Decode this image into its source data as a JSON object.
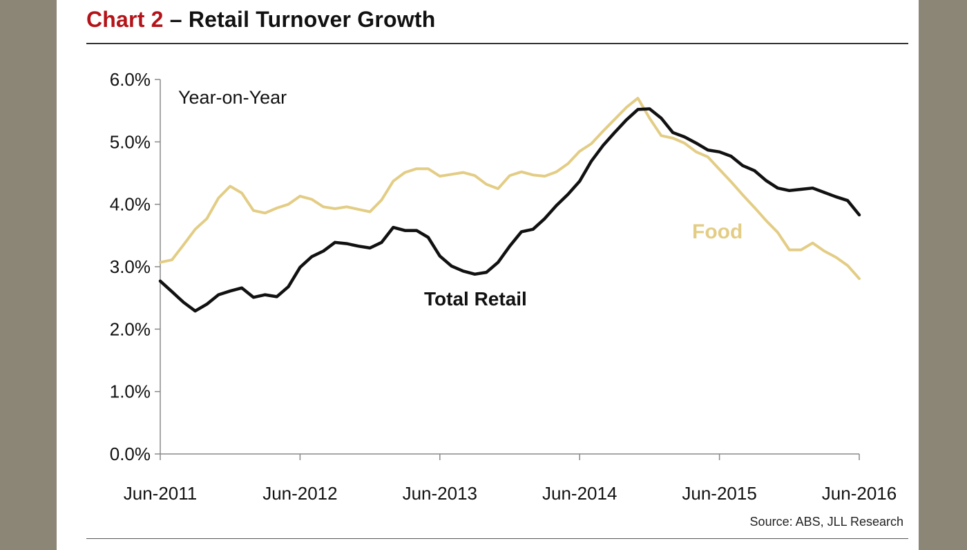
{
  "header": {
    "title_prefix": "Chart 2",
    "title_main": " – Retail Turnover Growth"
  },
  "source": "Source: ABS, JLL Research",
  "colors": {
    "accent": "#b41419",
    "frame": "#8c8676",
    "total_retail": "#111111",
    "food": "#e3cd85"
  },
  "chart_data": {
    "type": "line",
    "title": "Retail Turnover Growth",
    "subtitle": "Year-on-Year",
    "xlabel": "",
    "ylabel": "",
    "ylim": [
      0,
      0.06
    ],
    "xlim": [
      0,
      60
    ],
    "yticks": [
      {
        "value": 0.0,
        "label": "0.0%"
      },
      {
        "value": 0.01,
        "label": "1.0%"
      },
      {
        "value": 0.02,
        "label": "2.0%"
      },
      {
        "value": 0.03,
        "label": "3.0%"
      },
      {
        "value": 0.04,
        "label": "4.0%"
      },
      {
        "value": 0.05,
        "label": "5.0%"
      },
      {
        "value": 0.06,
        "label": "6.0%"
      }
    ],
    "xticks": [
      {
        "value": 0,
        "label": "Jun-2011"
      },
      {
        "value": 12,
        "label": "Jun-2012"
      },
      {
        "value": 24,
        "label": "Jun-2013"
      },
      {
        "value": 36,
        "label": "Jun-2014"
      },
      {
        "value": 48,
        "label": "Jun-2015"
      },
      {
        "value": 60,
        "label": "Jun-2016"
      }
    ],
    "series": [
      {
        "name": "Food",
        "color": "#e3cd85",
        "label": "Food",
        "x": [
          0,
          1,
          2,
          3,
          4,
          5,
          6,
          7,
          8,
          9,
          10,
          11,
          12,
          13,
          14,
          15,
          16,
          17,
          18,
          19,
          20,
          21,
          22,
          23,
          24,
          25,
          26,
          27,
          28,
          29,
          30,
          31,
          32,
          33,
          34,
          35,
          36,
          37,
          38,
          39,
          40,
          41,
          42,
          43,
          44,
          45,
          46,
          47,
          48,
          49,
          50,
          51,
          52,
          53,
          54,
          55,
          56,
          57,
          58,
          59,
          60
        ],
        "values": [
          0.0307,
          0.0311,
          0.0335,
          0.036,
          0.0377,
          0.041,
          0.0429,
          0.0418,
          0.039,
          0.0386,
          0.0394,
          0.04,
          0.0413,
          0.0408,
          0.0396,
          0.0393,
          0.0396,
          0.0392,
          0.0388,
          0.0407,
          0.0437,
          0.0451,
          0.0457,
          0.0457,
          0.0445,
          0.0448,
          0.0451,
          0.0446,
          0.0432,
          0.0425,
          0.0446,
          0.0452,
          0.0447,
          0.0445,
          0.0452,
          0.0465,
          0.0485,
          0.0497,
          0.0517,
          0.0536,
          0.0555,
          0.057,
          0.0538,
          0.051,
          0.0506,
          0.0498,
          0.0484,
          0.0476,
          0.0456,
          0.0436,
          0.0415,
          0.0395,
          0.0374,
          0.0355,
          0.0327,
          0.0327,
          0.0338,
          0.0325,
          0.0315,
          0.0302,
          0.0281
        ]
      },
      {
        "name": "Total Retail",
        "color": "#111111",
        "label": "Total Retail",
        "x": [
          0,
          1,
          2,
          3,
          4,
          5,
          6,
          7,
          8,
          9,
          10,
          11,
          12,
          13,
          14,
          15,
          16,
          17,
          18,
          19,
          20,
          21,
          22,
          23,
          24,
          25,
          26,
          27,
          28,
          29,
          30,
          31,
          32,
          33,
          34,
          35,
          36,
          37,
          38,
          39,
          40,
          41,
          42,
          43,
          44,
          45,
          46,
          47,
          48,
          49,
          50,
          51,
          52,
          53,
          54,
          55,
          56,
          57,
          58,
          59,
          60
        ],
        "values": [
          0.0277,
          0.026,
          0.0243,
          0.0229,
          0.024,
          0.0255,
          0.0261,
          0.0266,
          0.0251,
          0.0255,
          0.0252,
          0.0268,
          0.0299,
          0.0316,
          0.0325,
          0.0339,
          0.0337,
          0.0333,
          0.033,
          0.0339,
          0.0363,
          0.0358,
          0.0358,
          0.0347,
          0.0317,
          0.0301,
          0.0293,
          0.0288,
          0.0291,
          0.0307,
          0.0333,
          0.0356,
          0.036,
          0.0377,
          0.0398,
          0.0416,
          0.0437,
          0.0469,
          0.0494,
          0.0515,
          0.0535,
          0.0552,
          0.0553,
          0.0538,
          0.0515,
          0.0508,
          0.0498,
          0.0487,
          0.0484,
          0.0477,
          0.0462,
          0.0454,
          0.0438,
          0.0426,
          0.0422,
          0.0424,
          0.0426,
          0.0419,
          0.0412,
          0.0406,
          0.0383
        ]
      }
    ]
  }
}
